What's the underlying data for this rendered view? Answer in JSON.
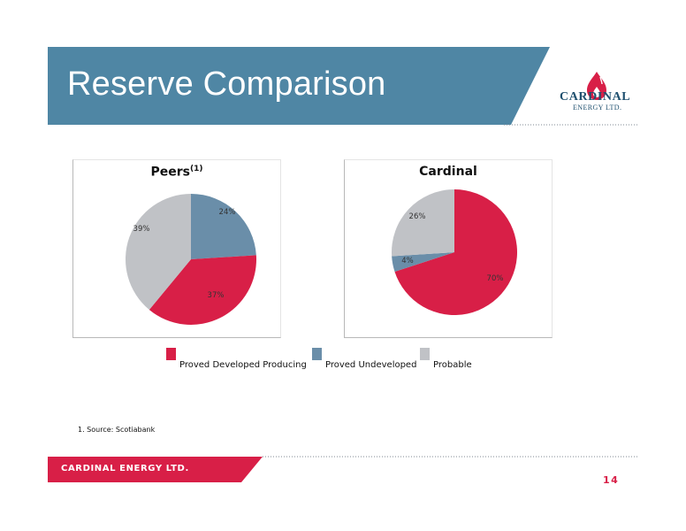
{
  "header": {
    "title": "Reserve Comparison",
    "band_color": "#4f86a4"
  },
  "logo": {
    "name": "CARDINAL",
    "subtitle": "ENERGY LTD.",
    "icon": "flame-drop-icon"
  },
  "colors": {
    "pdp": "#d81f47",
    "pud": "#6a8ea9",
    "probable": "#c0c2c6"
  },
  "chart_data": [
    {
      "type": "pie",
      "title": "Peers",
      "title_superscript": "(1)",
      "slices": [
        {
          "category": "Proved Undeveloped",
          "value": 24,
          "label": "24%"
        },
        {
          "category": "Proved Developed Producing",
          "value": 37,
          "label": "37%"
        },
        {
          "category": "Probable",
          "value": 39,
          "label": "39%"
        }
      ]
    },
    {
      "type": "pie",
      "title": "Cardinal",
      "slices": [
        {
          "category": "Proved Developed Producing",
          "value": 70,
          "label": "70%"
        },
        {
          "category": "Proved Undeveloped",
          "value": 4,
          "label": "4%"
        },
        {
          "category": "Probable",
          "value": 26,
          "label": "26%"
        }
      ]
    }
  ],
  "legend": {
    "items": [
      {
        "label": "Proved Developed Producing",
        "key": "pdp"
      },
      {
        "label": "Proved Undeveloped",
        "key": "pud"
      },
      {
        "label": "Probable",
        "key": "probable"
      }
    ]
  },
  "footnote": "1. Source: Scotiabank",
  "footer": {
    "company": "CARDINAL ENERGY LTD.",
    "page": "14"
  }
}
